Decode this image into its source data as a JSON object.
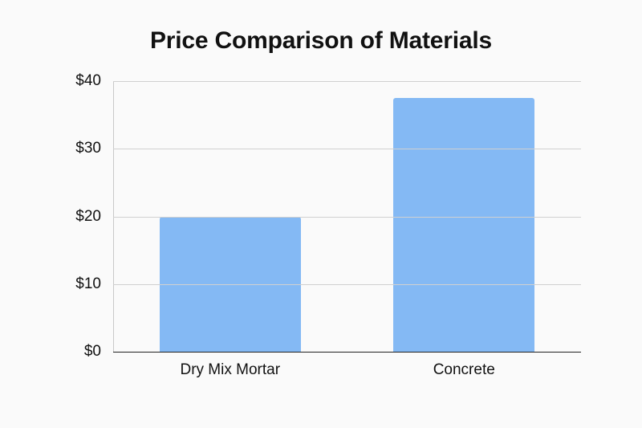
{
  "chart_data": {
    "type": "bar",
    "title": "Price Comparison of Materials",
    "categories": [
      "Dry Mix Mortar",
      "Concrete"
    ],
    "values": [
      20,
      37.5
    ],
    "xlabel": "",
    "ylabel": "",
    "ylim": [
      0,
      40
    ],
    "yticks": [
      "$0",
      "$10",
      "$20",
      "$30",
      "$40"
    ],
    "grid": true,
    "legend": "none",
    "bar_color": "#84b9f4"
  }
}
